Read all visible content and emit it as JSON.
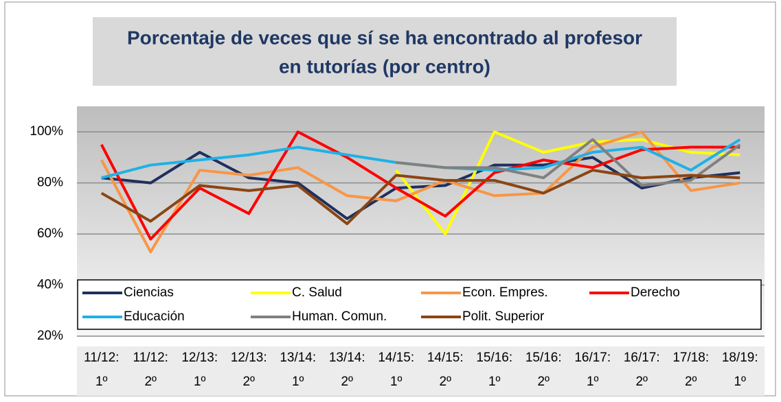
{
  "chart_data": {
    "type": "line",
    "title": [
      "Porcentaje de veces que sí se ha encontrado al profesor",
      "en tutorías (por centro)"
    ],
    "categories": [
      "11/12: 1º",
      "11/12: 2º",
      "12/13: 1º",
      "12/13: 2º",
      "13/14: 1º",
      "13/14: 2º",
      "14/15: 1º",
      "14/15: 2º",
      "15/16: 1º",
      "15/16: 2º",
      "16/17: 1º",
      "16/17: 2º",
      "17/18: 2º",
      "18/19: 1º"
    ],
    "series": [
      {
        "name": "Ciencias",
        "color": "#1f2f5e",
        "values": [
          82,
          80,
          92,
          82,
          80,
          66,
          78,
          79,
          87,
          87,
          90,
          78,
          82,
          84
        ]
      },
      {
        "name": "C. Salud",
        "color": "#ffff00",
        "values": [
          null,
          null,
          null,
          null,
          null,
          null,
          85,
          60,
          100,
          92,
          96,
          97,
          92,
          91
        ]
      },
      {
        "name": "Econ. Empres.",
        "color": "#f79646",
        "values": [
          89,
          53,
          85,
          83,
          86,
          75,
          73,
          81,
          75,
          76,
          94,
          100,
          77,
          80
        ]
      },
      {
        "name": "Derecho",
        "color": "#ff0000",
        "values": [
          95,
          58,
          78,
          68,
          100,
          90,
          78,
          67,
          84,
          89,
          86,
          93,
          94,
          94
        ]
      },
      {
        "name": "Educación",
        "color": "#1fb1e6",
        "values": [
          82,
          87,
          89,
          91,
          94,
          91,
          88,
          86,
          85,
          86,
          92,
          94,
          85,
          97
        ]
      },
      {
        "name": "Human. Comun.",
        "color": "#808080",
        "values": [
          null,
          null,
          null,
          null,
          null,
          null,
          88,
          86,
          86,
          82,
          97,
          79,
          81,
          95
        ]
      },
      {
        "name": "Polit. Superior",
        "color": "#8b4513",
        "values": [
          76,
          65,
          79,
          77,
          79,
          64,
          83,
          81,
          81,
          76,
          85,
          82,
          83,
          82
        ]
      }
    ],
    "ylim": [
      20,
      110
    ],
    "yticks": [
      {
        "value": 20,
        "label": "20%"
      },
      {
        "value": 40,
        "label": "40%"
      },
      {
        "value": 60,
        "label": "60%"
      },
      {
        "value": 80,
        "label": "80%"
      },
      {
        "value": 100,
        "label": "100%"
      }
    ],
    "grid": true,
    "legend": "bottom"
  }
}
